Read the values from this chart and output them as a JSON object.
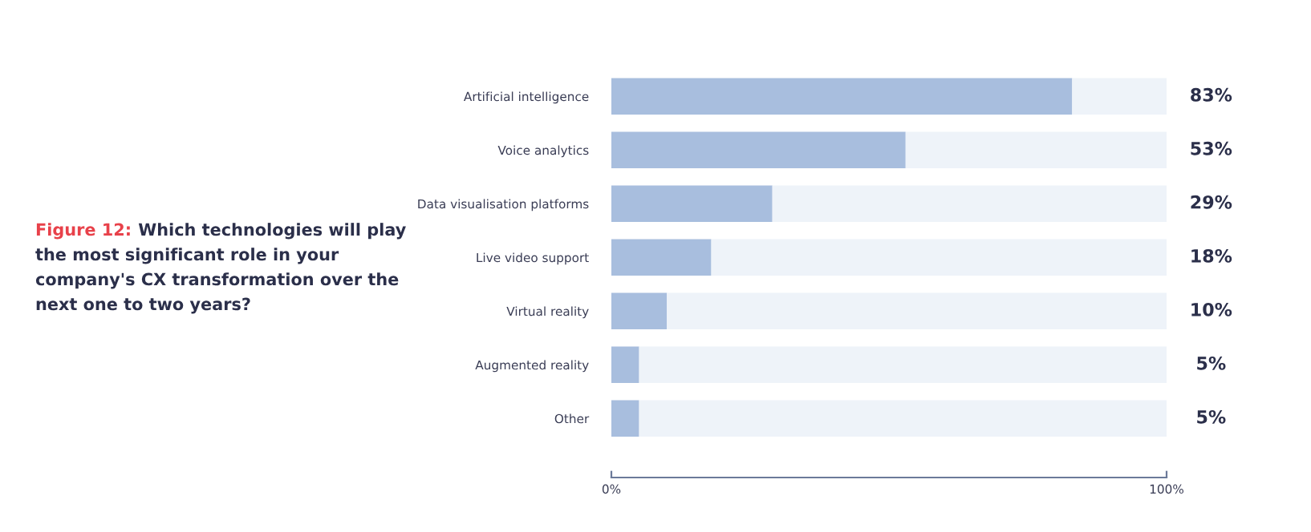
{
  "chart_data": {
    "type": "bar",
    "orientation": "horizontal",
    "stacked": true,
    "title": "Figure 12:",
    "subtitle": "Which technologies will play the most significant role in your company's CX transformation over the next one to two years?",
    "categories": [
      "Artificial intelligence",
      "Voice analytics",
      "Data visualisation platforms",
      "Live video support",
      "Virtual reality",
      "Augmented reality",
      "Other"
    ],
    "series": [
      {
        "color": "#a8bede",
        "values": [
          83,
          53,
          29,
          18,
          10,
          5,
          5
        ],
        "value_labels": [
          "83%",
          "53%",
          "29%",
          "18%",
          "10%",
          "5%",
          "5%"
        ]
      },
      {
        "color": "#eef3f9",
        "values": [
          17,
          47,
          71,
          82,
          90,
          95,
          95
        ]
      }
    ],
    "xlim": [
      0,
      100
    ],
    "xticks": [
      {
        "value": 0,
        "label": "0%"
      },
      {
        "value": 100,
        "label": "100%"
      }
    ],
    "grid": false,
    "legend": false
  }
}
